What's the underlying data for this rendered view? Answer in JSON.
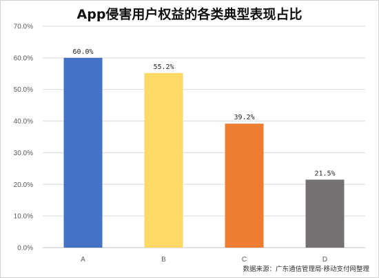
{
  "chart_data": {
    "type": "bar",
    "title": "App侵害用户权益的各类典型表现占比",
    "categories": [
      "A",
      "B",
      "C",
      "D"
    ],
    "values": [
      60.0,
      55.2,
      39.2,
      21.5
    ],
    "value_labels": [
      "60.0%",
      "55.2%",
      "39.2%",
      "21.5%"
    ],
    "ylim": [
      0,
      70
    ],
    "yticks": [
      0,
      10,
      20,
      30,
      40,
      50,
      60,
      70
    ],
    "ytick_labels": [
      "0.0%",
      "10.0%",
      "20.0%",
      "30.0%",
      "40.0%",
      "50.0%",
      "60.0%",
      "70.0%"
    ],
    "colors": [
      "#4472C4",
      "#FFD966",
      "#ED7D31",
      "#767171"
    ],
    "grid": true,
    "xlabel": "",
    "ylabel": ""
  },
  "source_note": "数据来源：广东通信管理局·移动支付网整理"
}
